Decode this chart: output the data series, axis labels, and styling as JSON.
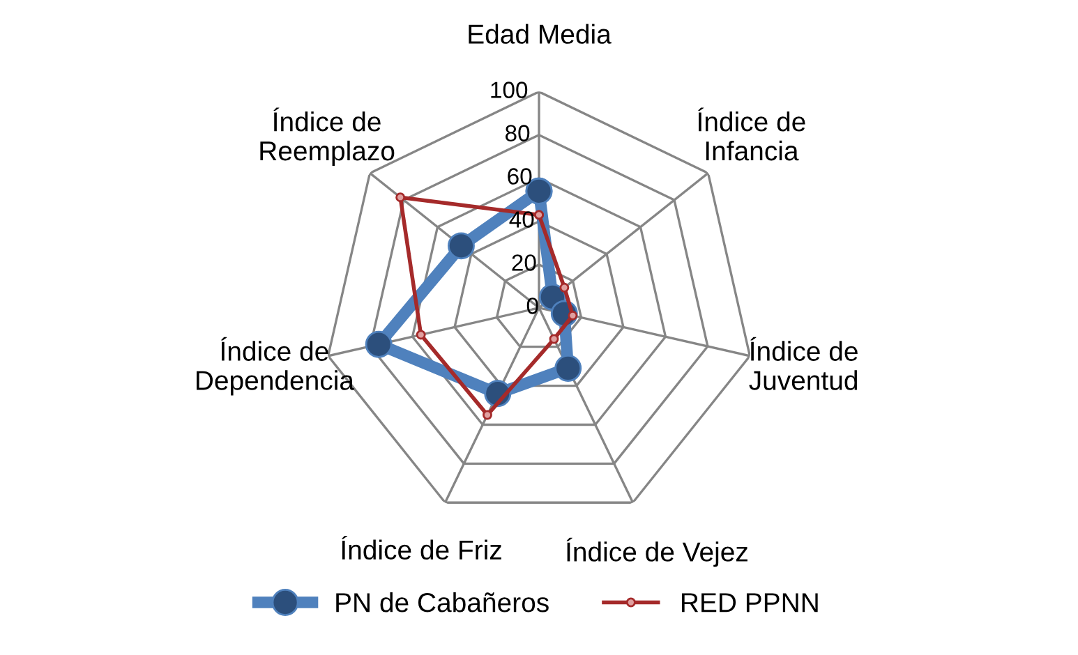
{
  "chart_data": {
    "type": "radar",
    "categories": [
      "Edad Media",
      "Índice de\nInfancia",
      "Índice de\nJuventud",
      "Índice de Vejez",
      "Índice de Friz",
      "Índice de\nDependencia",
      "Índice de\nReemplazo"
    ],
    "ylim": [
      0,
      100
    ],
    "yticks": [
      0,
      20,
      40,
      60,
      80,
      100
    ],
    "grid": true,
    "legend": "bottom",
    "series": [
      {
        "name": "PN de Cabañeros",
        "color": "#4f81bd",
        "marker": "circle",
        "values": [
          54,
          8,
          12,
          31,
          44,
          76,
          46
        ]
      },
      {
        "name": "RED PPNN",
        "color": "#a52a2a",
        "marker": "circle",
        "values": [
          43,
          15,
          16,
          16,
          55,
          56,
          82
        ]
      }
    ]
  }
}
